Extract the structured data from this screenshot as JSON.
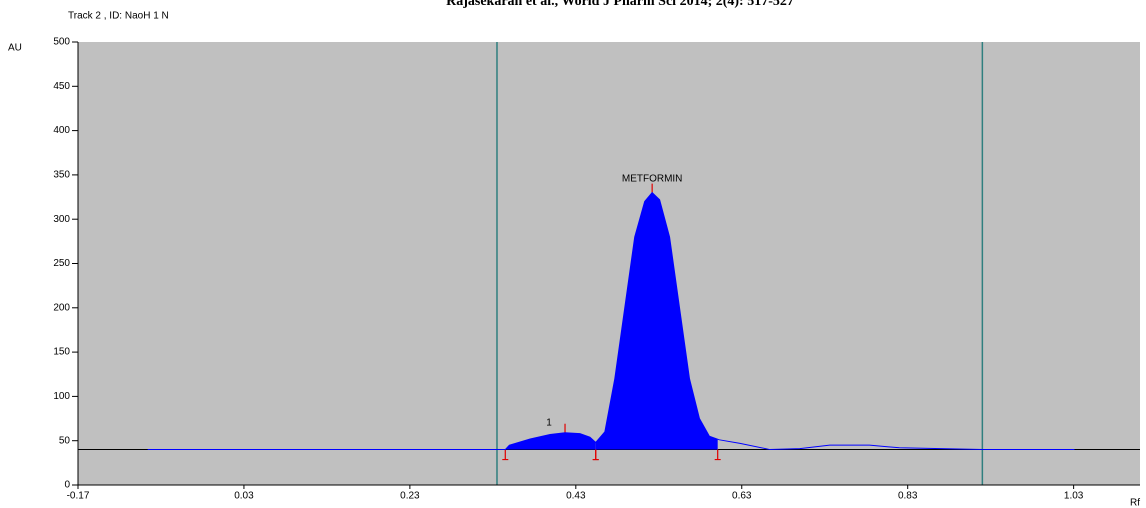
{
  "chart_data": {
    "type": "line",
    "title": "Rajasekaran et al., World J Pharm Sci 2014; 2(4): 517-527",
    "subtitle": "Track  2 , ID: NaoH 1 N",
    "y_label": "AU",
    "x_label": "Rf",
    "x": [
      -0.086,
      0.1,
      0.3,
      0.335,
      0.345,
      0.35,
      0.375,
      0.399,
      0.417,
      0.435,
      0.447,
      0.454,
      0.465,
      0.477,
      0.489,
      0.501,
      0.513,
      0.522,
      0.531,
      0.543,
      0.555,
      0.567,
      0.579,
      0.591,
      0.603,
      0.628,
      0.664,
      0.7,
      0.736,
      0.784,
      0.82,
      0.92,
      1.031
    ],
    "values": [
      40,
      40,
      40,
      40,
      40,
      45,
      52,
      57,
      59,
      58,
      54,
      48,
      60,
      120,
      200,
      280,
      320,
      330,
      322,
      280,
      200,
      120,
      75,
      55,
      51,
      47,
      40,
      41,
      45,
      45,
      42,
      40,
      40
    ],
    "color": "#0000ff",
    "baseline": 40,
    "peaks": [
      {
        "label": "1",
        "start": 0.345,
        "max": 0.417,
        "end": 0.454
      },
      {
        "label": "METFORMIN",
        "start": 0.454,
        "max": 0.522,
        "end": 0.601
      }
    ],
    "track_limits": [
      0.335,
      0.92
    ],
    "xlim": [
      -0.17,
      1.11
    ],
    "ylim": [
      0,
      500
    ],
    "xticks": [
      -0.17,
      0.03,
      0.23,
      0.43,
      0.63,
      0.83,
      1.03
    ],
    "yticks": [
      0,
      50,
      100,
      150,
      200,
      250,
      300,
      350,
      400,
      450,
      500
    ]
  }
}
